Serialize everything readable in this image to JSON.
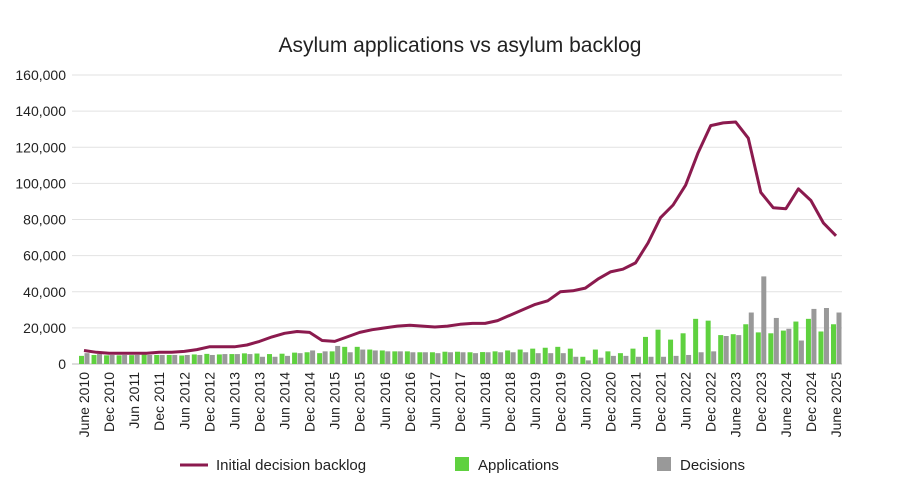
{
  "chart_data": {
    "type": "bar+line",
    "title": "Asylum applications vs asylum backlog",
    "xlabel": "",
    "ylabel": "",
    "ylim": [
      0,
      160000
    ],
    "yticks": [
      "0",
      "20,000",
      "40,000",
      "60,000",
      "80,000",
      "100,000",
      "120,000",
      "140,000",
      "160,000"
    ],
    "ytick_values": [
      0,
      20000,
      40000,
      60000,
      80000,
      100000,
      120000,
      140000,
      160000
    ],
    "grid": true,
    "legend_position": "bottom",
    "xtick_labels": [
      "June 2010",
      "Dec 2010",
      "Jun 2011",
      "Dec 2011",
      "Jun 2012",
      "Dec 2012",
      "Jun 2013",
      "Dec 2013",
      "Jun 2014",
      "Dec 2014",
      "Jun 2015",
      "Dec 2015",
      "Jun 2016",
      "Dec 2016",
      "Jun 2017",
      "Dec 2017",
      "Jun 2018",
      "Dec 2018",
      "Jun 2019",
      "Dec 2019",
      "Jun 2020",
      "Dec 2020",
      "Jun 2021",
      "Dec 2021",
      "Jun 2022",
      "Dec 2022",
      "June 2023",
      "Dec 2023",
      "June 2024",
      "Dec 2024",
      "June 2025"
    ],
    "x_frequency": "quarterly, June 2010 to June 2025",
    "series": [
      {
        "name": "Initial decision backlog",
        "type": "line",
        "color": "#8b1a4e",
        "values": [
          7500,
          6500,
          6000,
          6000,
          6000,
          6000,
          6500,
          6500,
          7000,
          8000,
          9500,
          9500,
          9500,
          10500,
          12500,
          15000,
          17000,
          18000,
          17500,
          13000,
          12500,
          15000,
          17500,
          19000,
          20000,
          21000,
          21500,
          21000,
          20500,
          21000,
          22000,
          22500,
          22500,
          24000,
          27000,
          30000,
          33000,
          35000,
          40000,
          40500,
          42000,
          47000,
          51000,
          52500,
          56000,
          67000,
          81000,
          88000,
          99000,
          117000,
          132000,
          133500,
          134000,
          125000,
          95000,
          86500,
          86000,
          97000,
          90500,
          78000,
          71000
        ]
      },
      {
        "name": "Applications",
        "type": "bar",
        "color": "#5fd13f",
        "values": [
          4500,
          5000,
          4800,
          4800,
          4900,
          5200,
          5000,
          5000,
          4700,
          5300,
          5600,
          5300,
          5500,
          5900,
          5800,
          5500,
          5700,
          6300,
          6500,
          6000,
          7000,
          9500,
          9500,
          8000,
          7500,
          7000,
          7000,
          6500,
          6500,
          6800,
          6800,
          6500,
          6600,
          7000,
          7500,
          8000,
          8500,
          9000,
          9500,
          8500,
          4000,
          8000,
          7000,
          6000,
          8500,
          15000,
          19000,
          13500,
          17000,
          25000,
          24000,
          16000,
          16500,
          22000,
          17500,
          17000,
          18500,
          23500,
          25000,
          18000,
          22000
        ]
      },
      {
        "name": "Decisions",
        "type": "bar",
        "color": "#999999",
        "values": [
          6000,
          5500,
          5000,
          5000,
          5000,
          5000,
          5000,
          5000,
          5000,
          5000,
          5000,
          5500,
          5500,
          5500,
          4000,
          4000,
          4500,
          6000,
          7500,
          7000,
          10000,
          6500,
          8000,
          7500,
          7000,
          7000,
          6500,
          6500,
          6000,
          6500,
          6500,
          6000,
          6500,
          6500,
          6500,
          6500,
          6000,
          6000,
          6000,
          4000,
          2000,
          3500,
          4500,
          4500,
          4000,
          4000,
          4000,
          4500,
          5000,
          6500,
          7000,
          15500,
          16000,
          28500,
          48500,
          25500,
          19500,
          13000,
          30500,
          31000,
          28500
        ]
      }
    ]
  }
}
